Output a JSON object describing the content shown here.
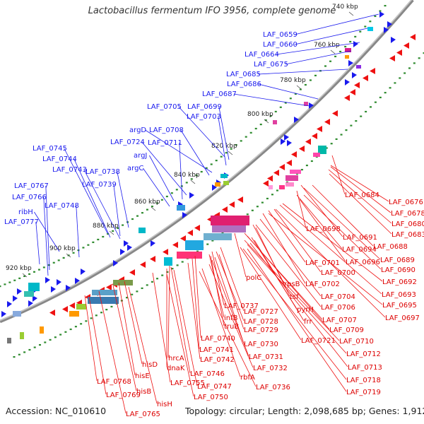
{
  "map": {
    "title": "Lactobacillus fermentum IFO 3956, complete genome",
    "accession": "Accession: NC_010610",
    "topology": "Topology: circular; Length: 2,098,685 bp; Genes: 1,912",
    "colors": {
      "forward": "#1a1aee",
      "reverse": "#ee1111",
      "backbone": "#888888",
      "tick": "#2e8b2e"
    },
    "ticks": [
      "740 kbp",
      "760 kbp",
      "780 kbp",
      "800 kbp",
      "820 kbp",
      "840 kbp",
      "860 kbp",
      "880 kbp",
      "900 kbp",
      "920 kbp"
    ],
    "forward_labels": [
      "LAF_0659",
      "LAF_0660",
      "LAF_0664",
      "LAF_0675",
      "LAF_0685",
      "LAF_0686",
      "LAF_0687",
      "LAF_0705",
      "LAF_0699",
      "LAF_0703",
      "argD",
      "LAF_0708",
      "LAF_0724",
      "LAF_0711",
      "argJ",
      "argC",
      "LAF_0745",
      "LAF_0744",
      "LAF_0743",
      "LAF_0738",
      "LAF_0739",
      "LAF_0767",
      "LAF_0766",
      "ribH",
      "LAF_0748",
      "LAF_0777"
    ],
    "reverse_labels": [
      "LAF_0684",
      "LAF_0676",
      "LAF_0678",
      "LAF_0680",
      "LAF_0683",
      "LAF_0698",
      "LAF_0691",
      "LAF_0688",
      "LAF_0694",
      "LAF_0689",
      "LAF_0696",
      "LAF_0690",
      "LAF_0701",
      "LAF_0700",
      "LAF_0692",
      "LAF_0702",
      "LAF_0693",
      "LAF_0704",
      "LAF_0695",
      "LAF_0706",
      "LAF_0697",
      "polC",
      "rpsB",
      "tsf",
      "pyrH",
      "frr",
      "LAF_0707",
      "LAF_0709",
      "LAF_0710",
      "LAF_0721",
      "LAF_0712",
      "LAF_0713",
      "LAF_0718",
      "LAF_0719",
      "LAF_0727",
      "LAF_0737",
      "LAF_0728",
      "infB",
      "truB",
      "LAF_0729",
      "LAF_0730",
      "LAF_0740",
      "LAF_0741",
      "LAF_0731",
      "LAF_0742",
      "LAF_0732",
      "hrcA",
      "dnaK",
      "LAF_0746",
      "rbfA",
      "LAF_0736",
      "LAF_0755",
      "LAF_0747",
      "hisD",
      "hisE",
      "LAF_0750",
      "LAF_0768",
      "hisB",
      "LAF_0769",
      "hisH",
      "LAF_0765"
    ]
  }
}
